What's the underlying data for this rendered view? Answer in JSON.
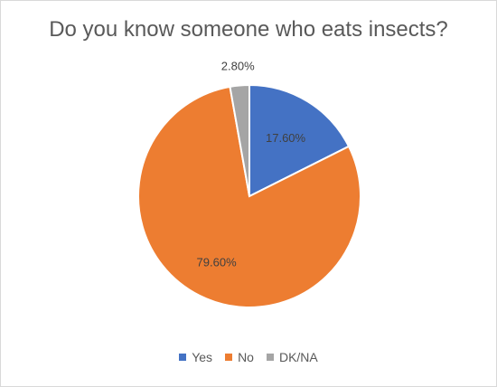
{
  "chart_data": {
    "type": "pie",
    "title": "Do you know someone who eats insects?",
    "categories": [
      "Yes",
      "No",
      "DK/NA"
    ],
    "values": [
      17.6,
      79.6,
      2.8
    ],
    "data_labels": [
      "17.60%",
      "79.60%",
      "2.80%"
    ],
    "colors": [
      "#4472c4",
      "#ed7d31",
      "#a5a5a5"
    ],
    "legend_position": "bottom"
  }
}
